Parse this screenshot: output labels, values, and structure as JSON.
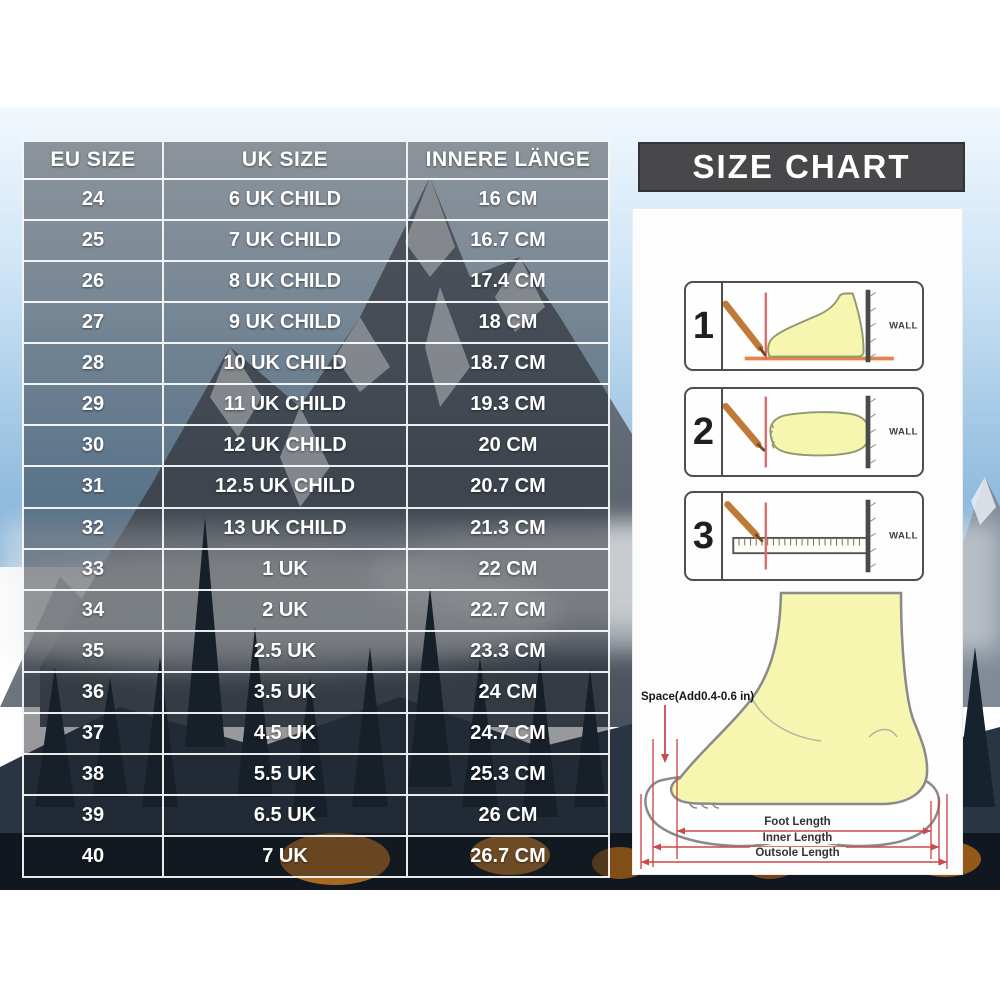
{
  "chart_data": {
    "type": "table",
    "title": "SIZE CHART",
    "columns": [
      "EU SIZE",
      "UK SIZE",
      "INNERE LÄNGE"
    ],
    "rows": [
      [
        "24",
        "6 UK CHILD",
        "16 CM"
      ],
      [
        "25",
        "7 UK CHILD",
        "16.7 CM"
      ],
      [
        "26",
        "8 UK CHILD",
        "17.4 CM"
      ],
      [
        "27",
        "9 UK CHILD",
        "18 CM"
      ],
      [
        "28",
        "10 UK CHILD",
        "18.7 CM"
      ],
      [
        "29",
        "11 UK CHILD",
        "19.3 CM"
      ],
      [
        "30",
        "12 UK CHILD",
        "20 CM"
      ],
      [
        "31",
        "12.5 UK CHILD",
        "20.7 CM"
      ],
      [
        "32",
        "13 UK CHILD",
        "21.3 CM"
      ],
      [
        "33",
        "1 UK",
        "22 CM"
      ],
      [
        "34",
        "2 UK",
        "22.7 CM"
      ],
      [
        "35",
        "2.5 UK",
        "23.3 CM"
      ],
      [
        "36",
        "3.5 UK",
        "24 CM"
      ],
      [
        "37",
        "4.5 UK",
        "24.7 CM"
      ],
      [
        "38",
        "5.5 UK",
        "25.3 CM"
      ],
      [
        "39",
        "6.5 UK",
        "26 CM"
      ],
      [
        "40",
        "7 UK",
        "26.7 CM"
      ]
    ]
  },
  "panel": {
    "title": "SIZE CHART",
    "steps": [
      {
        "number": "1",
        "wall_label": "WALL"
      },
      {
        "number": "2",
        "wall_label": "WALL"
      },
      {
        "number": "3",
        "wall_label": "WALL"
      }
    ],
    "foot_diagram": {
      "space_label": "Space(Add0.4-0.6 in)",
      "measurements": [
        "Foot Length",
        "Inner Length",
        "Outsole Length"
      ]
    }
  },
  "colors": {
    "measure_red": "#cc4949",
    "guide_red": "#e06a6a",
    "foot_fill": "#f6f6b0",
    "foot_outline": "#8f996e",
    "pencil": "#c07a38",
    "wall": "#4a4a4a",
    "title_bar_bg": "#48484b",
    "table_overlay": "rgba(25,28,35,0.45)",
    "table_grid": "#f6f6f6"
  }
}
